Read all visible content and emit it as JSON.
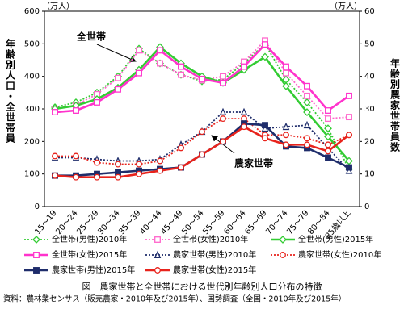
{
  "chart_data": {
    "type": "line",
    "caption": "図　農家世帯と全世帯における世代別年齢別人口分布の特徴",
    "source": "資料：農林業センサス（販売農家・2010年及び2015年）、国勢調査（全国・2010年及び2015年）",
    "y_label": "年齢別人口・全世帯員",
    "y2_label": "年齢別農家世帯員数",
    "y_unit": "（万人）",
    "y2_unit": "（万人）",
    "annotations": [
      "全世帯",
      "農家世帯"
    ],
    "categories": [
      "15～19",
      "20～24",
      "25～29",
      "30～34",
      "35～39",
      "40～44",
      "45～49",
      "50～54",
      "55～59",
      "60～64",
      "65～69",
      "70～74",
      "75～79",
      "80～84",
      "85歳以上"
    ],
    "ylim": [
      0,
      600
    ],
    "yticks": [
      0,
      100,
      200,
      300,
      400,
      500,
      600
    ],
    "y2lim": [
      0,
      60
    ],
    "y2ticks": [
      0,
      10,
      20,
      30,
      40,
      50,
      60
    ],
    "series": [
      {
        "name": "全世帯(男性)2010年",
        "color": "#33cc33",
        "dash": true,
        "marker": "diamond",
        "values": [
          305,
          320,
          350,
          400,
          485,
          440,
          405,
          385,
          390,
          440,
          500,
          390,
          320,
          240,
          115
        ]
      },
      {
        "name": "全世帯(女性)2010年",
        "color": "#ff66cc",
        "dash": true,
        "marker": "square",
        "values": [
          300,
          312,
          345,
          395,
          480,
          440,
          405,
          388,
          400,
          445,
          510,
          410,
          340,
          270,
          275
        ]
      },
      {
        "name": "全世帯(男性)2015年",
        "color": "#33cc33",
        "dash": false,
        "marker": "diamond",
        "values": [
          300,
          310,
          330,
          365,
          420,
          490,
          440,
          400,
          380,
          420,
          460,
          370,
          290,
          215,
          140
        ]
      },
      {
        "name": "全世帯(女性)2015年",
        "color": "#ff33cc",
        "dash": false,
        "marker": "square",
        "values": [
          290,
          295,
          320,
          360,
          410,
          480,
          430,
          392,
          380,
          430,
          498,
          430,
          370,
          295,
          340
        ]
      },
      {
        "name": "農家世帯(男性)2010年",
        "color": "#1f2d6b",
        "dash": true,
        "marker": "triangle",
        "axis": "y2",
        "values": [
          15,
          15,
          14.5,
          14,
          14,
          14.5,
          19,
          23,
          29,
          29,
          24,
          24.5,
          25,
          18,
          11
        ]
      },
      {
        "name": "農家世帯(女性)2010年",
        "color": "#e8231c",
        "dash": true,
        "marker": "circle",
        "axis": "y2",
        "values": [
          15.5,
          15.5,
          13.5,
          13,
          13,
          14,
          18,
          23,
          27,
          27,
          22,
          22,
          21,
          19,
          22
        ]
      },
      {
        "name": "農家世帯(男性)2015年",
        "color": "#1f2d6b",
        "dash": false,
        "marker": "square",
        "axis": "y2",
        "values": [
          9.5,
          9.5,
          10,
          10.5,
          11,
          11.5,
          12,
          16,
          20,
          25.5,
          25,
          18.5,
          18,
          15,
          12
        ]
      },
      {
        "name": "農家世帯(女性)2015年",
        "color": "#e8231c",
        "dash": false,
        "marker": "circle",
        "axis": "y2",
        "values": [
          9.5,
          9,
          9,
          9,
          10,
          11,
          12,
          16,
          20,
          24.5,
          21,
          19,
          19,
          17,
          22
        ]
      }
    ]
  }
}
